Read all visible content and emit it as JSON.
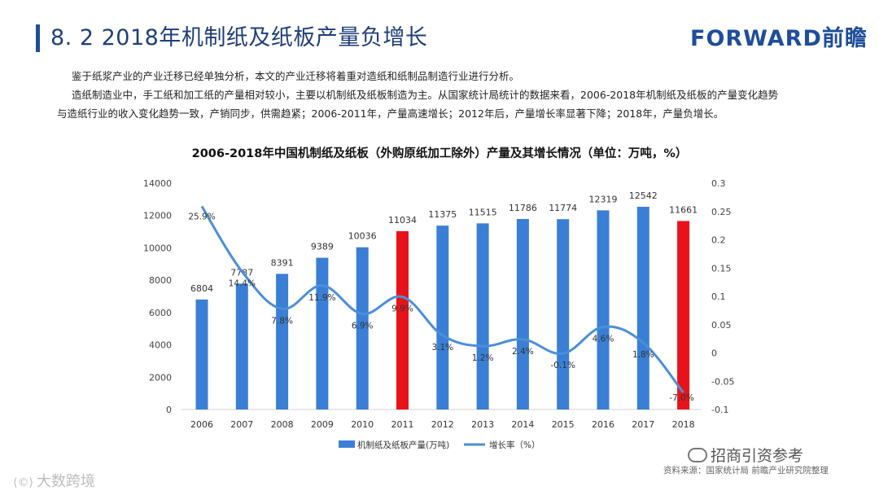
{
  "header": {
    "title": "8. 2  2018年机制纸及纸板产量负增长",
    "brand": "FORWARD前瞻"
  },
  "intro": {
    "line1": "鉴于纸浆产业的产业迁移已经单独分析，本文的产业迁移将着重对造纸和纸制品制造行业进行分析。",
    "line2": "造纸制造业中，手工纸和加工纸的产量相对较小，主要以机制纸及纸板制造为主。从国家统计局统计的数据来看，2006-2018年机制纸及纸板的产量变化趋势",
    "line3": "与造纸行业的收入变化趋势一致，产销同步，供需趋紧；2006-2011年，产量高速增长；2012年后，产量增长率显著下降；2018年，产量负增长。"
  },
  "chart_data": {
    "type": "bar+line",
    "title": "2006-2018年中国机制纸及纸板（外购原纸加工除外）产量及其增长情况（单位：万吨，%）",
    "categories": [
      "2006",
      "2007",
      "2008",
      "2009",
      "2010",
      "2011",
      "2012",
      "2013",
      "2014",
      "2015",
      "2016",
      "2017",
      "2018"
    ],
    "series": [
      {
        "name": "机制纸及纸板产量(万吨)",
        "type": "bar",
        "axis": "left",
        "values": [
          6804,
          7787,
          8391,
          9389,
          10036,
          11034,
          11375,
          11515,
          11786,
          11774,
          12319,
          12542,
          11661
        ],
        "labels": [
          "6804",
          "7787",
          "8391",
          "9389",
          "10036",
          "11034",
          "11375",
          "11515",
          "11786",
          "11774",
          "12319",
          "12542",
          "11661"
        ],
        "highlight_index": [
          5,
          12
        ]
      },
      {
        "name": "增长率（%）",
        "type": "line",
        "axis": "right",
        "values": [
          0.259,
          0.144,
          0.078,
          0.119,
          0.069,
          0.099,
          0.031,
          0.012,
          0.024,
          -0.001,
          0.046,
          0.018,
          -0.07
        ],
        "labels": [
          "25.9%",
          "14.4%",
          "7.8%",
          "11.9%",
          "6.9%",
          "9.9%",
          "3.1%",
          "1.2%",
          "2.4%",
          "-0.1%",
          "4.6%",
          "1.8%",
          "-7.0%"
        ]
      }
    ],
    "left_axis": {
      "ylim": [
        0,
        14000
      ],
      "ticks": [
        "0",
        "2000",
        "4000",
        "6000",
        "8000",
        "10000",
        "12000",
        "14000"
      ]
    },
    "right_axis": {
      "ylim": [
        -0.1,
        0.3
      ],
      "ticks": [
        "-0.1",
        "-0.05",
        "0",
        "0.05",
        "0.1",
        "0.15",
        "0.2",
        "0.25",
        "0.3"
      ]
    },
    "legend_position": "bottom-center",
    "colors": {
      "bar": "#3a7fd5",
      "bar_highlight": "#e8131a",
      "line": "#4a8fdb"
    }
  },
  "footer": {
    "source": "资料来源：国家统计局  前瞻产业研究院整理",
    "wechat": "招商引资参考",
    "watermark": "大数跨境"
  }
}
